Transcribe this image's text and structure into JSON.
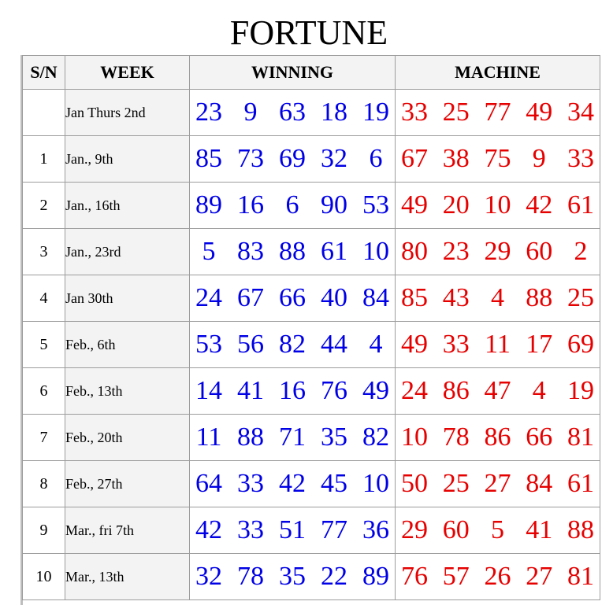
{
  "title": "FORTUNE",
  "headers": {
    "sn": "S/N",
    "week": "WEEK",
    "winning": "WINNING",
    "machine": "MACHINE"
  },
  "colors": {
    "winning": "#0000e6",
    "machine": "#e60000"
  },
  "rows": [
    {
      "sn": "",
      "week": "Jan Thurs 2nd",
      "winning": [
        "23",
        "9",
        "63",
        "18",
        "19"
      ],
      "machine": [
        "33",
        "25",
        "77",
        "49",
        "34"
      ]
    },
    {
      "sn": "1",
      "week": "Jan., 9th",
      "winning": [
        "85",
        "73",
        "69",
        "32",
        "6"
      ],
      "machine": [
        "67",
        "38",
        "75",
        "9",
        "33"
      ]
    },
    {
      "sn": "2",
      "week": "Jan., 16th",
      "winning": [
        "89",
        "16",
        "6",
        "90",
        "53"
      ],
      "machine": [
        "49",
        "20",
        "10",
        "42",
        "61"
      ]
    },
    {
      "sn": "3",
      "week": "Jan., 23rd",
      "winning": [
        "5",
        "83",
        "88",
        "61",
        "10"
      ],
      "machine": [
        "80",
        "23",
        "29",
        "60",
        "2"
      ]
    },
    {
      "sn": "4",
      "week": "Jan 30th",
      "winning": [
        "24",
        "67",
        "66",
        "40",
        "84"
      ],
      "machine": [
        "85",
        "43",
        "4",
        "88",
        "25"
      ]
    },
    {
      "sn": "5",
      "week": "Feb., 6th",
      "winning": [
        "53",
        "56",
        "82",
        "44",
        "4"
      ],
      "machine": [
        "49",
        "33",
        "11",
        "17",
        "69"
      ]
    },
    {
      "sn": "6",
      "week": "Feb., 13th",
      "winning": [
        "14",
        "41",
        "16",
        "76",
        "49"
      ],
      "machine": [
        "24",
        "86",
        "47",
        "4",
        "19"
      ]
    },
    {
      "sn": "7",
      "week": "Feb., 20th",
      "winning": [
        "11",
        "88",
        "71",
        "35",
        "82"
      ],
      "machine": [
        "10",
        "78",
        "86",
        "66",
        "81"
      ]
    },
    {
      "sn": "8",
      "week": "Feb., 27th",
      "winning": [
        "64",
        "33",
        "42",
        "45",
        "10"
      ],
      "machine": [
        "50",
        "25",
        "27",
        "84",
        "61"
      ]
    },
    {
      "sn": "9",
      "week": "Mar., fri 7th",
      "winning": [
        "42",
        "33",
        "51",
        "77",
        "36"
      ],
      "machine": [
        "29",
        "60",
        "5",
        "41",
        "88"
      ]
    },
    {
      "sn": "10",
      "week": "Mar., 13th",
      "winning": [
        "32",
        "78",
        "35",
        "22",
        "89"
      ],
      "machine": [
        "76",
        "57",
        "26",
        "27",
        "81"
      ]
    }
  ]
}
